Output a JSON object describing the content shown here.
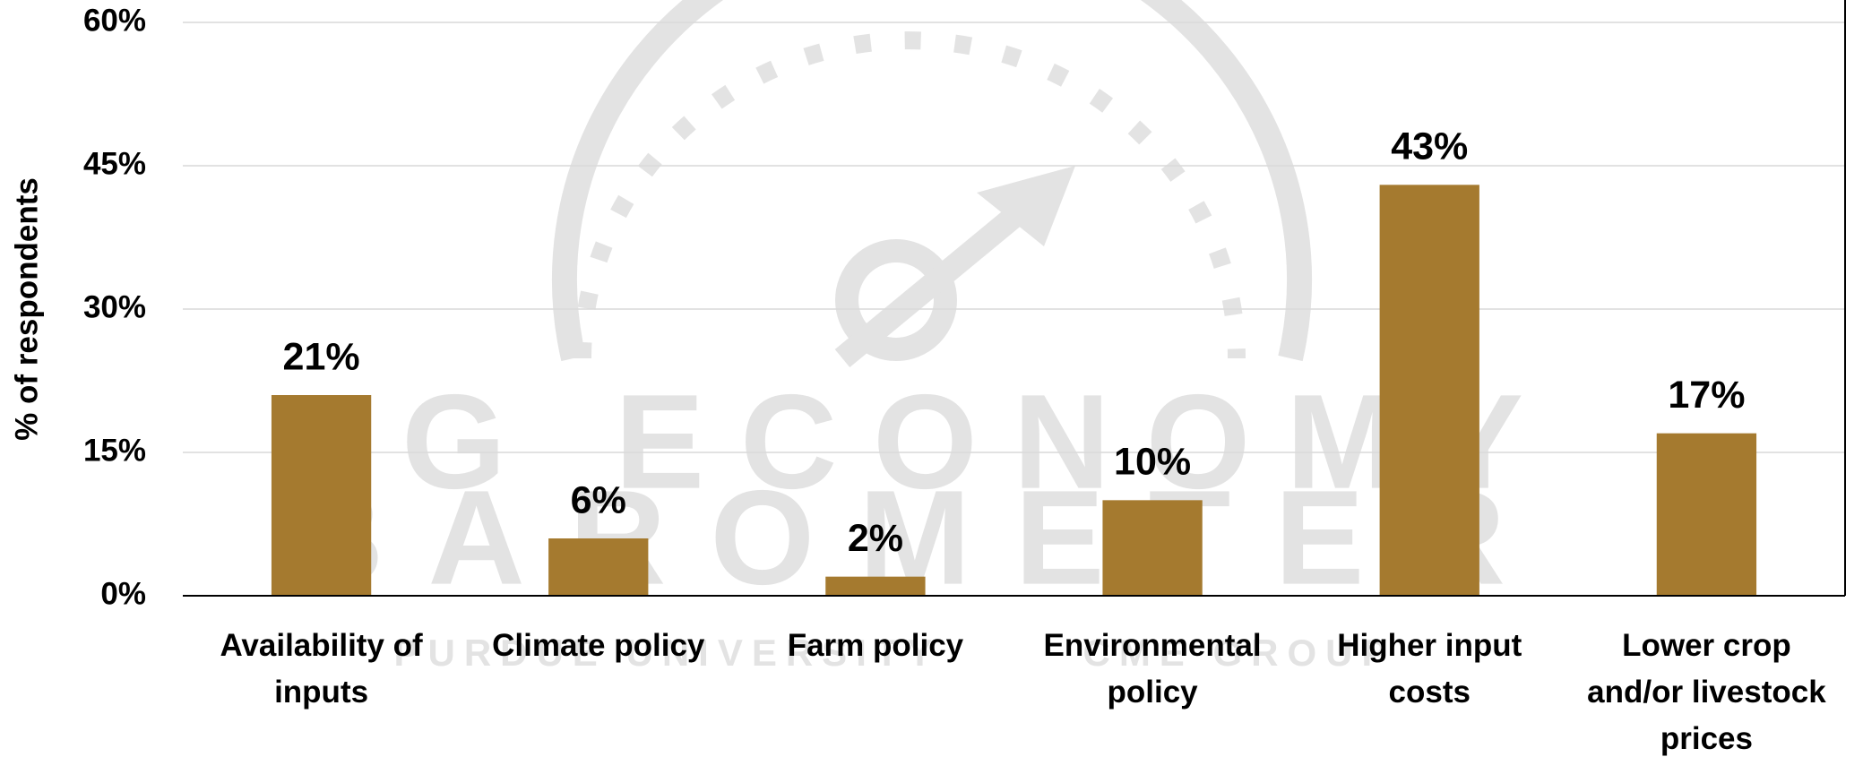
{
  "chart_data": {
    "type": "bar",
    "y_axis_label": "% of respondents",
    "categories": [
      "Availability of inputs",
      "Climate policy",
      "Farm policy",
      "Environmental policy",
      "Higher input costs",
      "Lower crop and/or livestock prices"
    ],
    "values": [
      21,
      6,
      2,
      10,
      43,
      17
    ],
    "value_labels": [
      "21%",
      "6%",
      "2%",
      "10%",
      "43%",
      "17%"
    ],
    "color": "#a57a2f",
    "ylim": [
      0,
      60
    ],
    "yticks": [
      {
        "value": 0,
        "label": "0%"
      },
      {
        "value": 15,
        "label": "15%"
      },
      {
        "value": 30,
        "label": "30%"
      },
      {
        "value": 45,
        "label": "45%"
      },
      {
        "value": 60,
        "label": "60%"
      }
    ],
    "grid": true,
    "watermark": [
      "AG ECONOMY",
      "BAROMETER",
      "PURDUE UNIVERSITY",
      "CME GROUP"
    ]
  }
}
